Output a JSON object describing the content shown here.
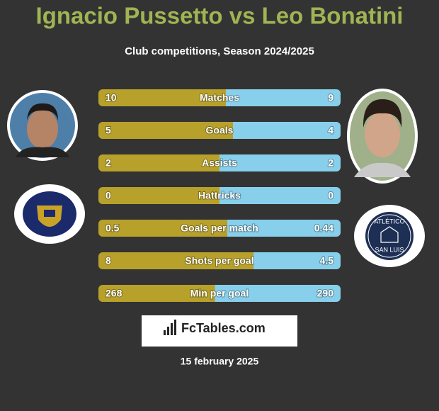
{
  "header": {
    "title": "Ignacio Pussetto vs Leo Bonatini",
    "subtitle": "Club competitions, Season 2024/2025"
  },
  "rows": [
    {
      "label": "Matches",
      "left": 10,
      "right": 9
    },
    {
      "label": "Goals",
      "left": 5,
      "right": 4
    },
    {
      "label": "Assists",
      "left": 2,
      "right": 2
    },
    {
      "label": "Hattricks",
      "left": 0,
      "right": 0
    },
    {
      "label": "Goals per match",
      "left": 0.5,
      "right": 0.44
    },
    {
      "label": "Shots per goal",
      "left": 8,
      "right": 4.5
    },
    {
      "label": "Min per goal",
      "left": 268,
      "right": 290
    }
  ],
  "right_club_logo": {
    "top": "ATLÉTICO",
    "bottom": "SAN LUIS"
  },
  "brand": "FcTables.com",
  "date": "15 february 2025",
  "colors": {
    "left": "#b8a12a",
    "right": "#87cfeb"
  }
}
